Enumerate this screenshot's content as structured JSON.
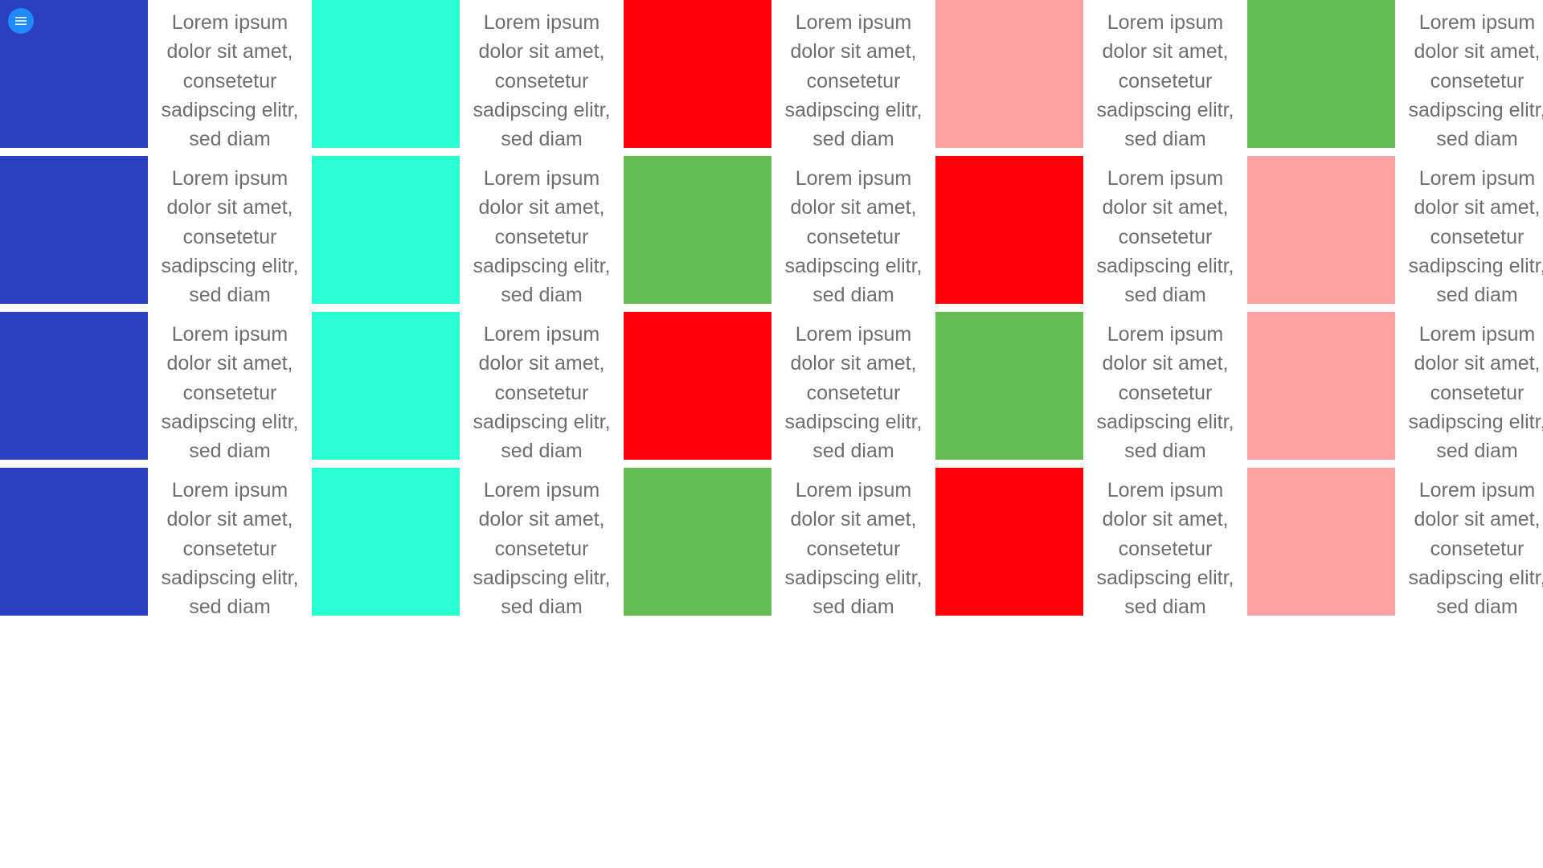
{
  "menu": {
    "icon": "hamburger-menu-icon",
    "color": "#1f8bff"
  },
  "colors": {
    "blue": "#2b40c1",
    "cyan": "#29ffd3",
    "red": "#ff0008",
    "pink": "#ffa0a2",
    "green": "#66be52"
  },
  "grid": {
    "rows": [
      [
        {
          "color": "blue",
          "text": "Lorem ipsum dolor sit amet, consetetur sadipscing elitr, sed diam"
        },
        {
          "color": "cyan",
          "text": "Lorem ipsum dolor sit amet, consetetur sadipscing elitr, sed diam"
        },
        {
          "color": "red",
          "text": "Lorem ipsum dolor sit amet, consetetur sadipscing elitr, sed diam"
        },
        {
          "color": "pink",
          "text": "Lorem ipsum dolor sit amet, consetetur sadipscing elitr, sed diam"
        },
        {
          "color": "green",
          "text": "Lorem ipsum dolor sit amet, consetetur sadipscing elitr, sed diam"
        }
      ],
      [
        {
          "color": "blue",
          "text": "Lorem ipsum dolor sit amet, consetetur sadipscing elitr, sed diam"
        },
        {
          "color": "cyan",
          "text": "Lorem ipsum dolor sit amet, consetetur sadipscing elitr, sed diam"
        },
        {
          "color": "green",
          "text": "Lorem ipsum dolor sit amet, consetetur sadipscing elitr, sed diam"
        },
        {
          "color": "red",
          "text": "Lorem ipsum dolor sit amet, consetetur sadipscing elitr, sed diam"
        },
        {
          "color": "pink",
          "text": "Lorem ipsum dolor sit amet, consetetur sadipscing elitr, sed diam"
        }
      ],
      [
        {
          "color": "blue",
          "text": "Lorem ipsum dolor sit amet, consetetur sadipscing elitr, sed diam"
        },
        {
          "color": "cyan",
          "text": "Lorem ipsum dolor sit amet, consetetur sadipscing elitr, sed diam"
        },
        {
          "color": "red",
          "text": "Lorem ipsum dolor sit amet, consetetur sadipscing elitr, sed diam"
        },
        {
          "color": "green",
          "text": "Lorem ipsum dolor sit amet, consetetur sadipscing elitr, sed diam"
        },
        {
          "color": "pink",
          "text": "Lorem ipsum dolor sit amet, consetetur sadipscing elitr, sed diam"
        }
      ],
      [
        {
          "color": "blue",
          "text": "Lorem ipsum dolor sit amet, consetetur sadipscing elitr, sed diam"
        },
        {
          "color": "cyan",
          "text": "Lorem ipsum dolor sit amet, consetetur sadipscing elitr, sed diam"
        },
        {
          "color": "green",
          "text": "Lorem ipsum dolor sit amet, consetetur sadipscing elitr, sed diam"
        },
        {
          "color": "red",
          "text": "Lorem ipsum dolor sit amet, consetetur sadipscing elitr, sed diam"
        },
        {
          "color": "pink",
          "text": "Lorem ipsum dolor sit amet, consetetur sadipscing elitr, sed diam"
        }
      ]
    ]
  }
}
